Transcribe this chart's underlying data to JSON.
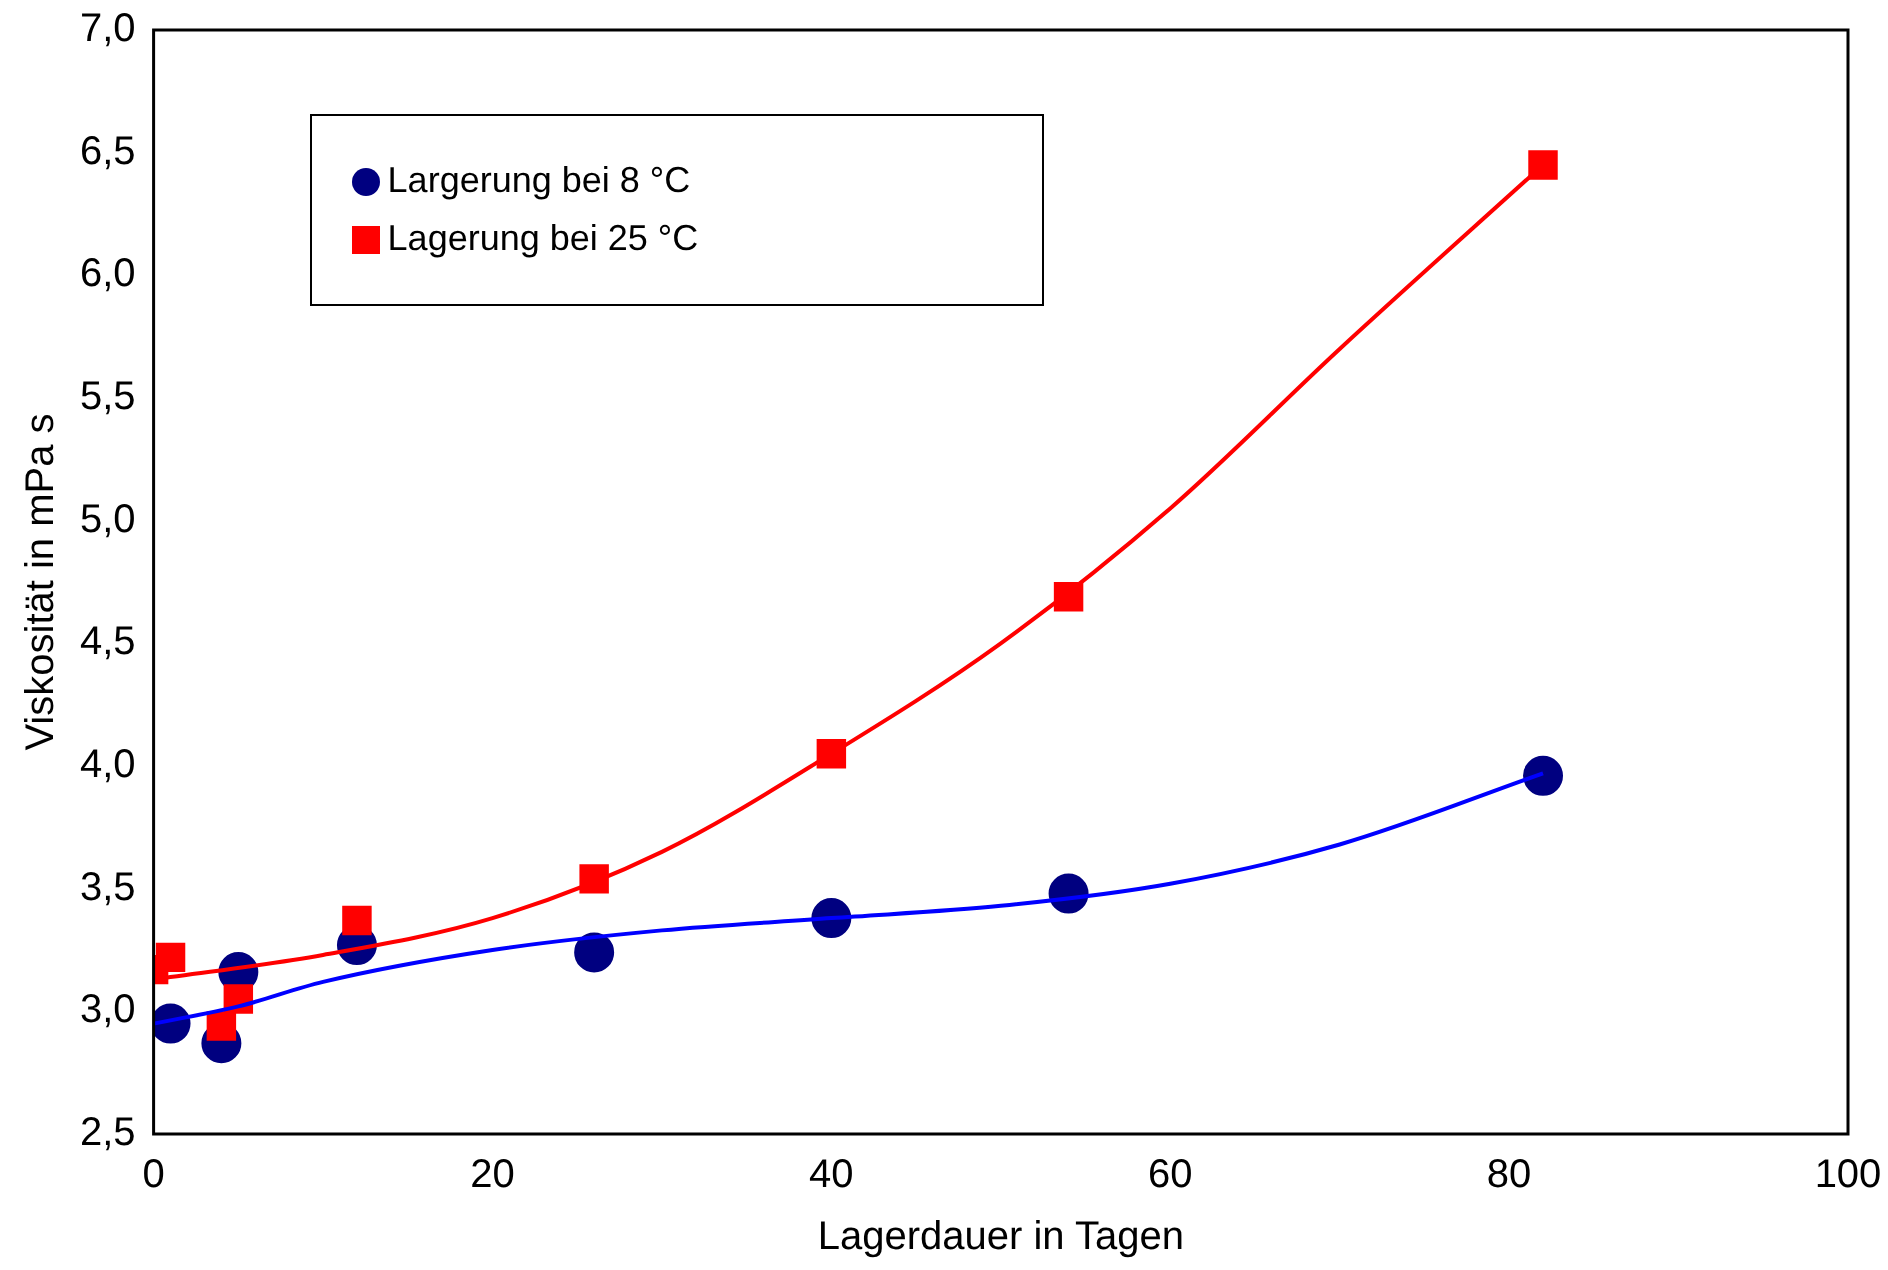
{
  "chart_data": {
    "type": "scatter",
    "xlabel": "Lagerdauer in Tagen",
    "ylabel": "Viskosität in mPa s",
    "xlim": [
      0,
      100
    ],
    "xticks": [
      0,
      20,
      40,
      60,
      80,
      100
    ],
    "ylim": [
      2.5,
      7.0
    ],
    "yticks": [
      {
        "value": 2.5,
        "label": "2,5"
      },
      {
        "value": 3.0,
        "label": "3,0"
      },
      {
        "value": 3.5,
        "label": "3,5"
      },
      {
        "value": 4.0,
        "label": "4,0"
      },
      {
        "value": 4.5,
        "label": "4,5"
      },
      {
        "value": 5.0,
        "label": "5,0"
      },
      {
        "value": 5.5,
        "label": "5,5"
      },
      {
        "value": 6.0,
        "label": "6,0"
      },
      {
        "value": 6.5,
        "label": "6,5"
      },
      {
        "value": 7.0,
        "label": "7,0"
      }
    ],
    "grid": false,
    "legend": "top left",
    "series": [
      {
        "type": "line",
        "color": "#0000ff",
        "marker": "none",
        "x": [
          0,
          5,
          10,
          20,
          30,
          40,
          50,
          60,
          70,
          82
        ],
        "values": [
          2.95,
          3.02,
          3.12,
          3.25,
          3.33,
          3.38,
          3.43,
          3.52,
          3.68,
          3.97
        ]
      },
      {
        "type": "line",
        "color": "#ff0000",
        "marker": "none",
        "x": [
          0,
          10,
          20,
          30,
          40,
          50,
          60,
          70,
          82
        ],
        "values": [
          3.13,
          3.23,
          3.38,
          3.65,
          4.05,
          4.5,
          5.05,
          5.7,
          6.45
        ]
      },
      {
        "name": "Largerung bei 8 °C",
        "type": "scatter",
        "color": "#000080",
        "marker": "circle",
        "x": [
          1,
          4,
          5,
          12,
          26,
          40,
          54,
          82
        ],
        "values": [
          2.95,
          2.87,
          3.16,
          3.27,
          3.24,
          3.38,
          3.48,
          3.96
        ]
      },
      {
        "name": "Lagerung bei 25 °C",
        "type": "scatter",
        "color": "#ff0000",
        "marker": "square",
        "x": [
          0,
          1,
          4,
          5,
          12,
          26,
          40,
          54,
          82
        ],
        "values": [
          3.17,
          3.22,
          2.94,
          3.05,
          3.37,
          3.54,
          4.05,
          4.69,
          6.45
        ]
      }
    ]
  }
}
